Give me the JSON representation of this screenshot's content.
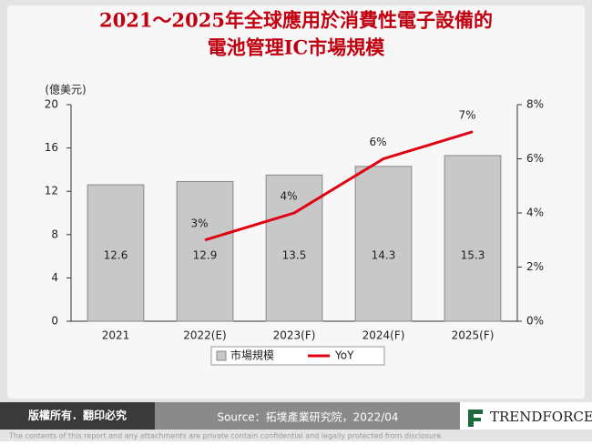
{
  "chart_data": {
    "type": "bar",
    "title": "2021～2025年全球應用於消費性電子設備的",
    "subtitle": "電池管理IC市場規模",
    "ylabel": "(億美元)",
    "categories": [
      "2021",
      "2022(E)",
      "2023(F)",
      "2024(F)",
      "2025(F)"
    ],
    "series": [
      {
        "name": "市場規模",
        "color": "#c8c8c8",
        "type": "bar",
        "values": [
          12.6,
          12.9,
          13.5,
          14.3,
          15.3
        ]
      },
      {
        "name": "YoY",
        "color": "#e00012",
        "type": "line",
        "axis": "y2",
        "values": [
          null,
          3,
          4,
          6,
          7
        ],
        "value_labels": [
          null,
          "3%",
          "4%",
          "6%",
          "7%"
        ]
      }
    ],
    "ylim": [
      0,
      20
    ],
    "yticks": [
      0,
      4,
      8,
      12,
      16,
      20
    ],
    "y2lim": [
      0,
      8
    ],
    "y2ticks": [
      {
        "value": 0,
        "label": "0%"
      },
      {
        "value": 2,
        "label": "2%"
      },
      {
        "value": 4,
        "label": "4%"
      },
      {
        "value": 6,
        "label": "6%"
      },
      {
        "value": 8,
        "label": "8%"
      }
    ],
    "grid": false,
    "legend": "bottom"
  },
  "footer": {
    "copyright": "版權所有．翻印必究",
    "source": "Source：拓墣產業研究院，2022/04",
    "brand": "TRENDFORCE"
  },
  "disclaimer": "The contents of this report and any attachments are private contain confidential and legally protected from disclosure."
}
